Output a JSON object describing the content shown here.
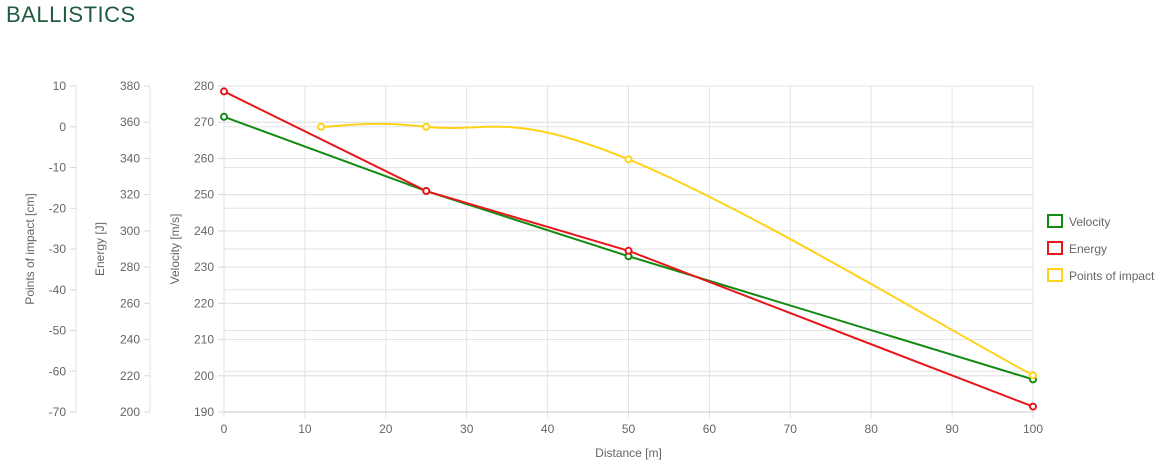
{
  "page": {
    "title": "BALLISTICS"
  },
  "chart_data": {
    "type": "line",
    "xlabel": "Distance [m]",
    "x_ticks": [
      "0",
      "10",
      "20",
      "30",
      "40",
      "50",
      "60",
      "70",
      "80",
      "90",
      "100"
    ],
    "xlim": [
      0,
      100
    ],
    "grid": true,
    "legend_position": "right",
    "axes": [
      {
        "id": "impact",
        "label": "Points of impact [cm]",
        "ylim": [
          -70,
          10
        ],
        "ticks": [
          "10",
          "0",
          "-10",
          "-20",
          "-30",
          "-40",
          "-50",
          "-60",
          "-70"
        ]
      },
      {
        "id": "energy",
        "label": "Energy [J]",
        "ylim": [
          200,
          380
        ],
        "ticks": [
          "380",
          "360",
          "340",
          "320",
          "300",
          "280",
          "260",
          "240",
          "220",
          "200"
        ]
      },
      {
        "id": "velocity",
        "label": "Velocity [m/s]",
        "ylim": [
          190,
          280
        ],
        "ticks": [
          "280",
          "270",
          "260",
          "250",
          "240",
          "230",
          "220",
          "210",
          "200",
          "190"
        ]
      }
    ],
    "series": [
      {
        "name": "Velocity",
        "axis": "velocity",
        "color": "#138a13",
        "smooth": false,
        "x": [
          0,
          25,
          50,
          100
        ],
        "y": [
          271.5,
          251,
          233,
          199
        ]
      },
      {
        "name": "Energy",
        "axis": "energy",
        "color": "#e8171b",
        "smooth": false,
        "x": [
          0,
          25,
          50,
          100
        ],
        "y": [
          377,
          322,
          289,
          203
        ]
      },
      {
        "name": "Points of impact",
        "axis": "impact",
        "color": "#ffd21a",
        "smooth": true,
        "x": [
          12,
          25,
          50,
          100
        ],
        "y": [
          0,
          0,
          -8,
          -61
        ]
      }
    ]
  }
}
